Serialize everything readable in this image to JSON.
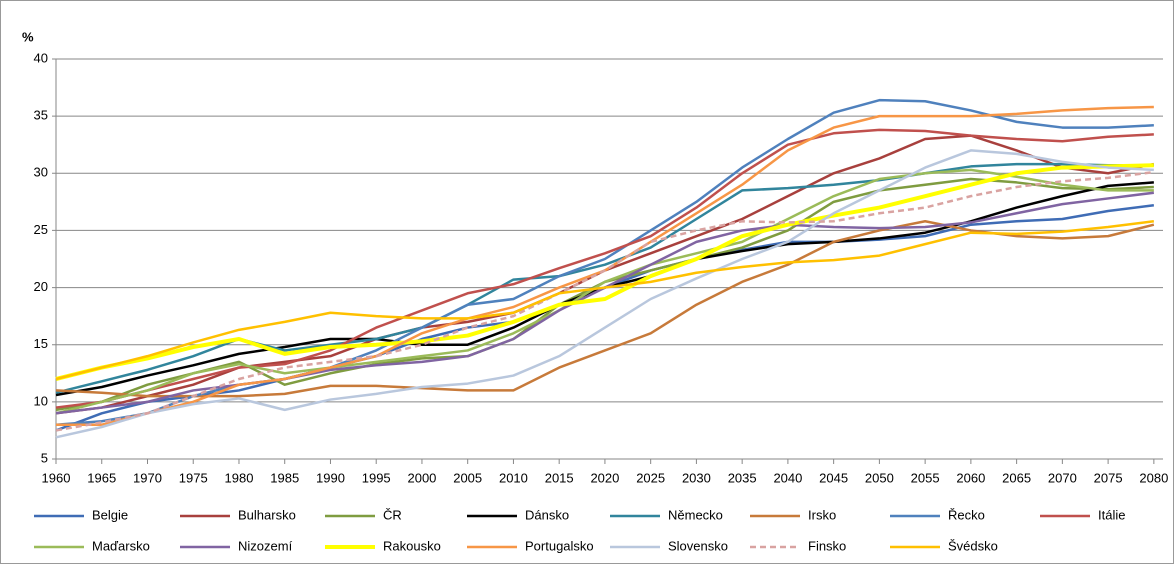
{
  "chart_data": {
    "type": "line",
    "ylabel": "%",
    "x": [
      1960,
      1965,
      1970,
      1975,
      1980,
      1985,
      1990,
      1995,
      2000,
      2005,
      2010,
      2015,
      2020,
      2025,
      2030,
      2035,
      2040,
      2045,
      2050,
      2055,
      2060,
      2065,
      2070,
      2075,
      2080
    ],
    "xlim": [
      1960,
      2081
    ],
    "xticks": [
      1960,
      1965,
      1970,
      1975,
      1980,
      1985,
      1990,
      1995,
      2000,
      2005,
      2010,
      2015,
      2020,
      2025,
      2030,
      2035,
      2040,
      2045,
      2050,
      2055,
      2060,
      2065,
      2070,
      2075,
      2080
    ],
    "ylim": [
      5,
      40
    ],
    "yticks": [
      5,
      10,
      15,
      20,
      25,
      30,
      35,
      40
    ],
    "grid": true,
    "legend": "bottom",
    "series": [
      {
        "name": "Belgie",
        "color": "#3f6cb5",
        "values": [
          7.5,
          9,
          10,
          10.5,
          11,
          12,
          13,
          14,
          15.5,
          16.5,
          17,
          18.5,
          20,
          21.5,
          22.5,
          23.3,
          24,
          24,
          24.2,
          24.5,
          25.5,
          25.8,
          26,
          26.7,
          27.2
        ]
      },
      {
        "name": "Bulharsko",
        "color": "#a8403d",
        "values": [
          9,
          9.5,
          10.5,
          11.5,
          13,
          13.5,
          14,
          15.5,
          16.5,
          17,
          17.8,
          19.5,
          21.5,
          23,
          24.5,
          26,
          28,
          30,
          31.3,
          33,
          33.3,
          32,
          30.5,
          30,
          30.8
        ]
      },
      {
        "name": "ČR",
        "color": "#7f9c40",
        "values": [
          9.3,
          10,
          11.5,
          12.5,
          13.5,
          11.5,
          12.5,
          13.3,
          13.8,
          14,
          15.5,
          18.5,
          20.5,
          21.5,
          22.5,
          23.5,
          25,
          27.5,
          28.5,
          29,
          29.5,
          29.2,
          28.7,
          28.6,
          28.8
        ]
      },
      {
        "name": "Dánsko",
        "color": "#000000",
        "values": [
          10.6,
          11.3,
          12.3,
          13.2,
          14.2,
          14.8,
          15.5,
          15.5,
          15,
          15,
          16.5,
          18.5,
          20,
          21,
          22.5,
          23.2,
          23.8,
          24,
          24.3,
          24.8,
          25.8,
          27,
          28,
          28.9,
          29.2
        ]
      },
      {
        "name": "Německo",
        "color": "#31859c",
        "values": [
          10.8,
          11.8,
          12.8,
          14,
          15.5,
          14.5,
          15,
          15.5,
          16.5,
          18.5,
          20.7,
          21,
          22,
          23.5,
          26,
          28.5,
          28.7,
          29,
          29.4,
          30,
          30.6,
          30.8,
          30.8,
          30.7,
          30.7
        ]
      },
      {
        "name": "Irsko",
        "color": "#c77a3a",
        "values": [
          11,
          10.8,
          10.5,
          10.5,
          10.5,
          10.7,
          11.4,
          11.4,
          11.2,
          11,
          11,
          13,
          14.5,
          16,
          18.5,
          20.5,
          22,
          24,
          25,
          25.8,
          25,
          24.5,
          24.3,
          24.5,
          25.5
        ]
      },
      {
        "name": "Řecko",
        "color": "#4f81bd",
        "values": [
          8,
          8.3,
          9,
          10.5,
          11.5,
          12,
          13,
          14.5,
          16.5,
          18.5,
          19,
          21,
          22.5,
          25,
          27.5,
          30.5,
          33,
          35.3,
          36.4,
          36.3,
          35.5,
          34.5,
          34,
          34,
          34.2
        ]
      },
      {
        "name": "Itálie",
        "color": "#c0504d",
        "values": [
          9.5,
          10,
          11,
          12,
          13,
          13.3,
          14.5,
          16.5,
          18,
          19.5,
          20.3,
          21.7,
          23,
          24.5,
          27,
          30,
          32.5,
          33.5,
          33.8,
          33.7,
          33.3,
          33,
          32.8,
          33.2,
          33.4
        ]
      },
      {
        "name": "Maďarsko",
        "color": "#9bbb59",
        "values": [
          9,
          10,
          11,
          12.5,
          13.3,
          12.5,
          13,
          13.5,
          14,
          14.5,
          16,
          18,
          20.5,
          22,
          23,
          24,
          26,
          28,
          29.5,
          30,
          30.3,
          29.7,
          29,
          28.5,
          28.5
        ]
      },
      {
        "name": "Nizozemí",
        "color": "#8064a2",
        "values": [
          9,
          9.5,
          10,
          11,
          11.5,
          12,
          12.8,
          13.2,
          13.5,
          14,
          15.5,
          18,
          20,
          22,
          24,
          25,
          25.5,
          25.3,
          25.2,
          25.3,
          25.7,
          26.5,
          27.3,
          27.8,
          28.3
        ]
      },
      {
        "name": "Rakousko",
        "color": "#ffff00",
        "values": [
          12,
          13,
          13.8,
          14.8,
          15.5,
          14.2,
          14.8,
          15,
          15.3,
          15.8,
          17,
          18.5,
          19,
          21,
          22.5,
          24.5,
          25.5,
          26.3,
          27,
          28,
          29,
          30,
          30.5,
          30.6,
          30.7
        ]
      },
      {
        "name": "Portugalsko",
        "color": "#f79646",
        "values": [
          8,
          8,
          9,
          10,
          11.5,
          12,
          13,
          14,
          16,
          17.3,
          18.3,
          20,
          21.5,
          24,
          26.5,
          29,
          32,
          34,
          35,
          35,
          35,
          35.2,
          35.5,
          35.7,
          35.8
        ]
      },
      {
        "name": "Slovensko",
        "color": "#b9c7dd",
        "values": [
          6.9,
          7.8,
          9,
          9.8,
          10.3,
          9.3,
          10.2,
          10.7,
          11.3,
          11.6,
          12.3,
          14,
          16.5,
          19,
          20.8,
          22.5,
          24,
          26.5,
          28.5,
          30.5,
          32,
          31.7,
          31,
          30.5,
          30.3
        ]
      },
      {
        "name": "Finsko",
        "color": "#d9a3a1",
        "dashed": true,
        "values": [
          7.5,
          8.2,
          9,
          10.5,
          12,
          13,
          13.5,
          14,
          15,
          16.5,
          17.5,
          19.5,
          21.5,
          24,
          25,
          25.8,
          25.7,
          25.8,
          26.5,
          27,
          28,
          28.8,
          29.3,
          29.6,
          30.1
        ]
      },
      {
        "name": "Švédsko",
        "color": "#ffc000",
        "values": [
          12,
          13,
          14,
          15.2,
          16.3,
          17,
          17.8,
          17.5,
          17.3,
          17.3,
          17.8,
          19.5,
          20,
          20.5,
          21.3,
          21.8,
          22.2,
          22.4,
          22.8,
          23.8,
          24.8,
          24.7,
          24.9,
          25.3,
          25.8
        ]
      }
    ]
  }
}
